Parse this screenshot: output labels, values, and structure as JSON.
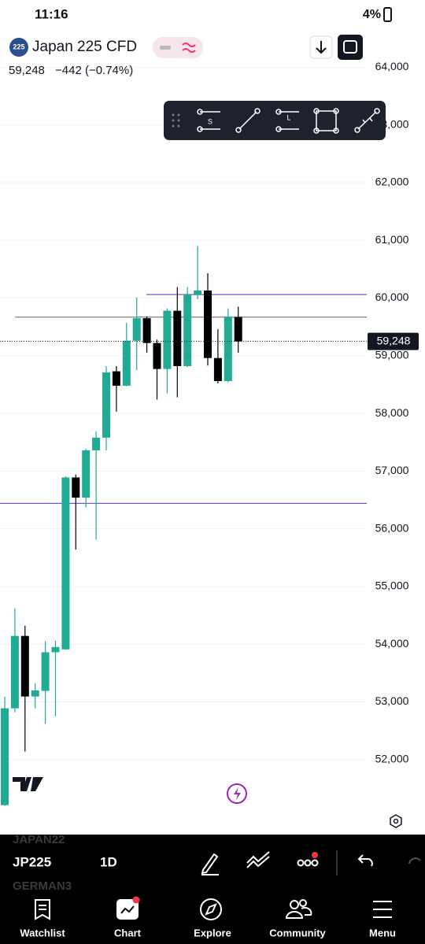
{
  "status_bar": {
    "time": "11:16",
    "battery": "4%"
  },
  "header": {
    "badge": "225",
    "symbol": "Japan 225 CFD",
    "price": "59,248",
    "change": "−442 (−0.74%)"
  },
  "drawing_tools": {
    "labels": [
      "S",
      "L"
    ]
  },
  "chart_data": {
    "type": "candlestick",
    "categories": [
      null,
      null,
      null,
      null,
      null,
      null,
      null,
      null,
      null,
      null,
      null,
      null,
      null,
      null,
      null,
      null,
      null,
      null,
      null,
      null,
      null,
      null,
      null,
      null
    ],
    "open": [
      51210,
      52888,
      54143,
      53093,
      53190,
      53860,
      53910,
      56890,
      56540,
      57360,
      57580,
      58730,
      58480,
      59260,
      59650,
      59220,
      58770,
      59780,
      58820,
      60060,
      60130,
      58960,
      58560,
      59670
    ],
    "close": [
      52888,
      54143,
      53093,
      53200,
      53860,
      53950,
      56890,
      56540,
      57360,
      57580,
      58710,
      58480,
      59260,
      59650,
      59220,
      58770,
      59780,
      58820,
      60060,
      60130,
      58960,
      58560,
      59670,
      59248
    ],
    "high": [
      53090,
      54620,
      54320,
      53325,
      54050,
      54060,
      56910,
      56940,
      57390,
      57690,
      58820,
      58820,
      59570,
      60010,
      59680,
      59280,
      59820,
      60190,
      60190,
      60900,
      60430,
      59460,
      59820,
      59850
    ],
    "low": [
      51200,
      52820,
      52140,
      52890,
      52620,
      52750,
      53900,
      55640,
      56370,
      55810,
      57360,
      58030,
      58470,
      58750,
      59050,
      58240,
      58350,
      58280,
      58800,
      59980,
      58830,
      58520,
      58540,
      59050
    ],
    "up_color": "#22ab94",
    "down_color": "#000000",
    "ylim": [
      50700,
      64620
    ],
    "yticks": [
      {
        "value": 52000,
        "label": "52,000"
      },
      {
        "value": 53000,
        "label": "53,000"
      },
      {
        "value": 54000,
        "label": "54,000"
      },
      {
        "value": 55000,
        "label": "55,000"
      },
      {
        "value": 56000,
        "label": "56,000"
      },
      {
        "value": 57000,
        "label": "57,000"
      },
      {
        "value": 58000,
        "label": "58,000"
      },
      {
        "value": 59000,
        "label": "59,000"
      },
      {
        "value": 60000,
        "label": "60,000"
      },
      {
        "value": 61000,
        "label": "61,000"
      },
      {
        "value": 62000,
        "label": "62,000"
      },
      {
        "value": 63000,
        "label": "63,000"
      },
      {
        "value": 64000,
        "label": "64,000"
      }
    ],
    "grid": true,
    "hlines": [
      {
        "value": 60060,
        "color": "#7e57c2"
      },
      {
        "value": 59670,
        "color": "#787b86"
      },
      {
        "value": 56440,
        "color": "#7e57c2"
      }
    ],
    "last_price": {
      "value": 59248,
      "label": "59,248"
    }
  },
  "bottom_bar": {
    "watermark": [
      "JAPAN22",
      "GERMAN3"
    ],
    "symbol": "JP225",
    "interval": "1D"
  },
  "nav": [
    "Watchlist",
    "Chart",
    "Explore",
    "Community",
    "Menu"
  ]
}
